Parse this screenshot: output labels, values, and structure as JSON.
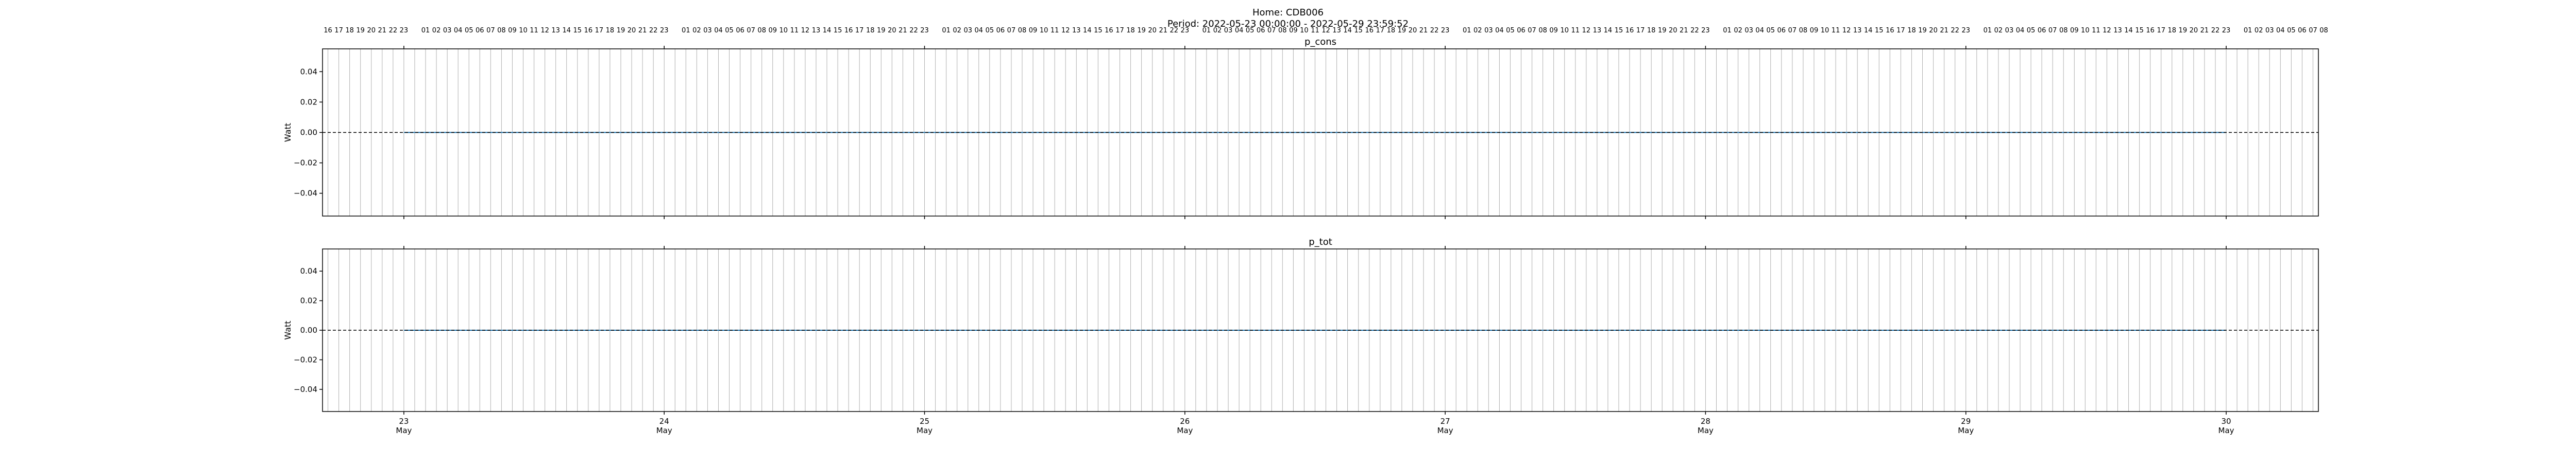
{
  "header": {
    "home": "Home: CDB006",
    "period": "Period: 2022-05-23 00:00:00 - 2022-05-29 23:59:52"
  },
  "chart_data": [
    {
      "type": "line",
      "title": "p_cons",
      "xlabel": "",
      "ylabel": "Watt",
      "ylim": [
        -0.055,
        0.055
      ],
      "yticks": [
        0.04,
        0.02,
        0.0,
        -0.02,
        -0.04
      ],
      "ytick_labels": [
        "0.04",
        "0.02",
        "0.00",
        "−0.02",
        "−0.04"
      ],
      "xlim": [
        "2022-05-22 16:30",
        "2022-05-30 08:30"
      ],
      "hour_grid": true,
      "hour_tick_labels": [
        "16",
        "17",
        "18",
        "19",
        "20",
        "21",
        "22",
        "23",
        "",
        "01",
        "02",
        "03",
        "04",
        "05",
        "06",
        "07",
        "08",
        "09",
        "10",
        "11",
        "12",
        "13",
        "14",
        "15",
        "16",
        "17",
        "18",
        "19",
        "20",
        "21",
        "22",
        "23",
        "",
        "01",
        "02",
        "03",
        "04",
        "05",
        "06",
        "07",
        "08",
        "09",
        "10",
        "11",
        "12",
        "13",
        "14",
        "15",
        "16",
        "17",
        "18",
        "19",
        "20",
        "21",
        "22",
        "23",
        "",
        "01",
        "02",
        "03",
        "04",
        "05",
        "06",
        "07",
        "08",
        "09",
        "10",
        "11",
        "12",
        "13",
        "14",
        "15",
        "16",
        "17",
        "18",
        "19",
        "20",
        "21",
        "22",
        "23",
        "",
        "01",
        "02",
        "03",
        "04",
        "05",
        "06",
        "07",
        "08",
        "09",
        "10",
        "11",
        "12",
        "13",
        "14",
        "15",
        "16",
        "17",
        "18",
        "19",
        "20",
        "21",
        "22",
        "23",
        "",
        "01",
        "02",
        "03",
        "04",
        "05",
        "06",
        "07",
        "08",
        "09",
        "10",
        "11",
        "12",
        "13",
        "14",
        "15",
        "16",
        "17",
        "18",
        "19",
        "20",
        "21",
        "22",
        "23",
        "",
        "01",
        "02",
        "03",
        "04",
        "05",
        "06",
        "07",
        "08",
        "09",
        "10",
        "11",
        "12",
        "13",
        "14",
        "15",
        "16",
        "17",
        "18",
        "19",
        "20",
        "21",
        "22",
        "23",
        "",
        "01",
        "02",
        "03",
        "04",
        "05",
        "06",
        "07",
        "08",
        "09",
        "10",
        "11",
        "12",
        "13",
        "14",
        "15",
        "16",
        "17",
        "18",
        "19",
        "20",
        "21",
        "22",
        "23",
        "",
        "01",
        "02",
        "03",
        "04",
        "05",
        "06",
        "07",
        "08"
      ],
      "day_ticks": [
        {
          "day": "23",
          "month": "May"
        },
        {
          "day": "24",
          "month": "May"
        },
        {
          "day": "25",
          "month": "May"
        },
        {
          "day": "26",
          "month": "May"
        },
        {
          "day": "27",
          "month": "May"
        },
        {
          "day": "28",
          "month": "May"
        },
        {
          "day": "29",
          "month": "May"
        },
        {
          "day": "30",
          "month": "May"
        }
      ],
      "reference_line": 0.0,
      "series": [
        {
          "x": [
            "2022-05-23 00:00",
            "2022-05-29 23:59"
          ],
          "values": [
            0.0,
            0.0
          ]
        }
      ]
    },
    {
      "type": "line",
      "title": "p_tot",
      "xlabel": "",
      "ylabel": "Watt",
      "ylim": [
        -0.055,
        0.055
      ],
      "yticks": [
        0.04,
        0.02,
        0.0,
        -0.02,
        -0.04
      ],
      "ytick_labels": [
        "0.04",
        "0.02",
        "0.00",
        "−0.02",
        "−0.04"
      ],
      "xlim": [
        "2022-05-22 16:30",
        "2022-05-30 08:30"
      ],
      "hour_grid": true,
      "reference_line": 0.0,
      "series": [
        {
          "x": [
            "2022-05-23 00:00",
            "2022-05-29 23:59"
          ],
          "values": [
            0.0,
            0.0
          ]
        }
      ],
      "day_ticks": [
        {
          "day": "23",
          "month": "May"
        },
        {
          "day": "24",
          "month": "May"
        },
        {
          "day": "25",
          "month": "May"
        },
        {
          "day": "26",
          "month": "May"
        },
        {
          "day": "27",
          "month": "May"
        },
        {
          "day": "28",
          "month": "May"
        },
        {
          "day": "29",
          "month": "May"
        },
        {
          "day": "30",
          "month": "May"
        }
      ]
    }
  ],
  "colors": {
    "series": "#1f77b4",
    "reference": "#000000",
    "grid": "#b0b0b0"
  }
}
